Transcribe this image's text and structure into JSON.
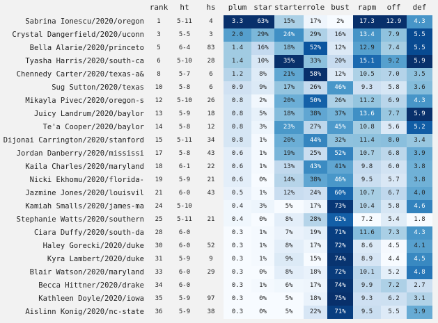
{
  "chart_data": {
    "type": "table",
    "columns": [
      "rank",
      "ht",
      "hs",
      "plum",
      "star",
      "starter",
      "role",
      "bust",
      "rapm",
      "off",
      "def"
    ],
    "rows": [
      {
        "player": "Sabrina Ionescu/2020/oregon",
        "rank": "1",
        "ht": "5-11",
        "hs": "4",
        "plum": "3.3",
        "star": "63%",
        "starter": "15%",
        "role": "17%",
        "bust": "2%",
        "rapm": "17.3",
        "off": "12.9",
        "def": "4.3"
      },
      {
        "player": "Crystal Dangerfield/2020/uconn",
        "rank": "3",
        "ht": "5-5",
        "hs": "3",
        "plum": "2.0",
        "star": "29%",
        "starter": "24%",
        "role": "29%",
        "bust": "16%",
        "rapm": "13.4",
        "off": "7.9",
        "def": "5.5"
      },
      {
        "player": "Bella Alarie/2020/princeto",
        "rank": "5",
        "ht": "6-4",
        "hs": "83",
        "plum": "1.4",
        "star": "16%",
        "starter": "18%",
        "role": "52%",
        "bust": "12%",
        "rapm": "12.9",
        "off": "7.4",
        "def": "5.5"
      },
      {
        "player": "Tyasha Harris/2020/south-ca",
        "rank": "6",
        "ht": "5-10",
        "hs": "28",
        "plum": "1.4",
        "star": "10%",
        "starter": "35%",
        "role": "33%",
        "bust": "20%",
        "rapm": "15.1",
        "off": "9.2",
        "def": "5.9"
      },
      {
        "player": "Chennedy Carter/2020/texas-a&",
        "rank": "8",
        "ht": "5-7",
        "hs": "6",
        "plum": "1.2",
        "star": "8%",
        "starter": "21%",
        "role": "58%",
        "bust": "12%",
        "rapm": "10.5",
        "off": "7.0",
        "def": "3.5"
      },
      {
        "player": "Sug Sutton/2020/texas",
        "rank": "10",
        "ht": "5-8",
        "hs": "6",
        "plum": "0.9",
        "star": "9%",
        "starter": "17%",
        "role": "26%",
        "bust": "46%",
        "rapm": "9.3",
        "off": "5.8",
        "def": "3.6"
      },
      {
        "player": "Mikayla Pivec/2020/oregon-s",
        "rank": "12",
        "ht": "5-10",
        "hs": "26",
        "plum": "0.8",
        "star": "2%",
        "starter": "20%",
        "role": "50%",
        "bust": "26%",
        "rapm": "11.2",
        "off": "6.9",
        "def": "4.3"
      },
      {
        "player": "Juicy Landrum/2020/baylor",
        "rank": "13",
        "ht": "5-9",
        "hs": "18",
        "plum": "0.8",
        "star": "5%",
        "starter": "18%",
        "role": "38%",
        "bust": "37%",
        "rapm": "13.6",
        "off": "7.7",
        "def": "5.9"
      },
      {
        "player": "Te'a Cooper/2020/baylor",
        "rank": "14",
        "ht": "5-8",
        "hs": "12",
        "plum": "0.8",
        "star": "3%",
        "starter": "23%",
        "role": "27%",
        "bust": "45%",
        "rapm": "10.8",
        "off": "5.6",
        "def": "5.2"
      },
      {
        "player": "Dijonai Carrington/2020/stanford",
        "rank": "15",
        "ht": "5-11",
        "hs": "34",
        "plum": "0.8",
        "star": "1%",
        "starter": "20%",
        "role": "44%",
        "bust": "32%",
        "rapm": "11.4",
        "off": "8.0",
        "def": "3.4"
      },
      {
        "player": "Jordan Danberry/2020/mississi",
        "rank": "17",
        "ht": "5-8",
        "hs": "43",
        "plum": "0.6",
        "star": "1%",
        "starter": "19%",
        "role": "25%",
        "bust": "52%",
        "rapm": "10.7",
        "off": "6.8",
        "def": "3.9"
      },
      {
        "player": "Kaila Charles/2020/maryland",
        "rank": "18",
        "ht": "6-1",
        "hs": "22",
        "plum": "0.6",
        "star": "1%",
        "starter": "13%",
        "role": "43%",
        "bust": "41%",
        "rapm": "9.8",
        "off": "6.0",
        "def": "3.8"
      },
      {
        "player": "Nicki Ekhomu/2020/florida-",
        "rank": "19",
        "ht": "5-9",
        "hs": "21",
        "plum": "0.6",
        "star": "0%",
        "starter": "14%",
        "role": "38%",
        "bust": "46%",
        "rapm": "9.5",
        "off": "5.7",
        "def": "3.8"
      },
      {
        "player": "Jazmine Jones/2020/louisvil",
        "rank": "21",
        "ht": "6-0",
        "hs": "43",
        "plum": "0.5",
        "star": "1%",
        "starter": "12%",
        "role": "24%",
        "bust": "60%",
        "rapm": "10.7",
        "off": "6.7",
        "def": "4.0"
      },
      {
        "player": "Kamiah Smalls/2020/james-ma",
        "rank": "24",
        "ht": "5-10",
        "hs": "",
        "plum": "0.4",
        "star": "3%",
        "starter": "5%",
        "role": "17%",
        "bust": "73%",
        "rapm": "10.4",
        "off": "5.8",
        "def": "4.6"
      },
      {
        "player": "Stephanie Watts/2020/southern",
        "rank": "25",
        "ht": "5-11",
        "hs": "21",
        "plum": "0.4",
        "star": "0%",
        "starter": "8%",
        "role": "28%",
        "bust": "62%",
        "rapm": "7.2",
        "off": "5.4",
        "def": "1.8"
      },
      {
        "player": "Ciara Duffy/2020/south-da",
        "rank": "28",
        "ht": "6-0",
        "hs": "",
        "plum": "0.3",
        "star": "1%",
        "starter": "7%",
        "role": "19%",
        "bust": "71%",
        "rapm": "11.6",
        "off": "7.3",
        "def": "4.3"
      },
      {
        "player": "Haley Gorecki/2020/duke",
        "rank": "30",
        "ht": "6-0",
        "hs": "52",
        "plum": "0.3",
        "star": "1%",
        "starter": "8%",
        "role": "17%",
        "bust": "72%",
        "rapm": "8.6",
        "off": "4.5",
        "def": "4.1"
      },
      {
        "player": "Kyra Lambert/2020/duke",
        "rank": "31",
        "ht": "5-9",
        "hs": "9",
        "plum": "0.3",
        "star": "1%",
        "starter": "9%",
        "role": "15%",
        "bust": "74%",
        "rapm": "8.9",
        "off": "4.4",
        "def": "4.5"
      },
      {
        "player": "Blair Watson/2020/maryland",
        "rank": "33",
        "ht": "6-0",
        "hs": "29",
        "plum": "0.3",
        "star": "0%",
        "starter": "8%",
        "role": "18%",
        "bust": "72%",
        "rapm": "10.1",
        "off": "5.2",
        "def": "4.8"
      },
      {
        "player": "Becca Hittner/2020/drake",
        "rank": "34",
        "ht": "6-0",
        "hs": "",
        "plum": "0.3",
        "star": "1%",
        "starter": "6%",
        "role": "17%",
        "bust": "74%",
        "rapm": "9.9",
        "off": "7.2",
        "def": "2.7"
      },
      {
        "player": "Kathleen Doyle/2020/iowa",
        "rank": "35",
        "ht": "5-9",
        "hs": "97",
        "plum": "0.3",
        "star": "0%",
        "starter": "5%",
        "role": "18%",
        "bust": "75%",
        "rapm": "9.3",
        "off": "6.2",
        "def": "3.1"
      },
      {
        "player": "Aislinn Konig/2020/nc-state",
        "rank": "36",
        "ht": "5-9",
        "hs": "38",
        "plum": "0.3",
        "star": "0%",
        "starter": "5%",
        "role": "22%",
        "bust": "71%",
        "rapm": "9.5",
        "off": "5.5",
        "def": "3.9"
      }
    ]
  }
}
